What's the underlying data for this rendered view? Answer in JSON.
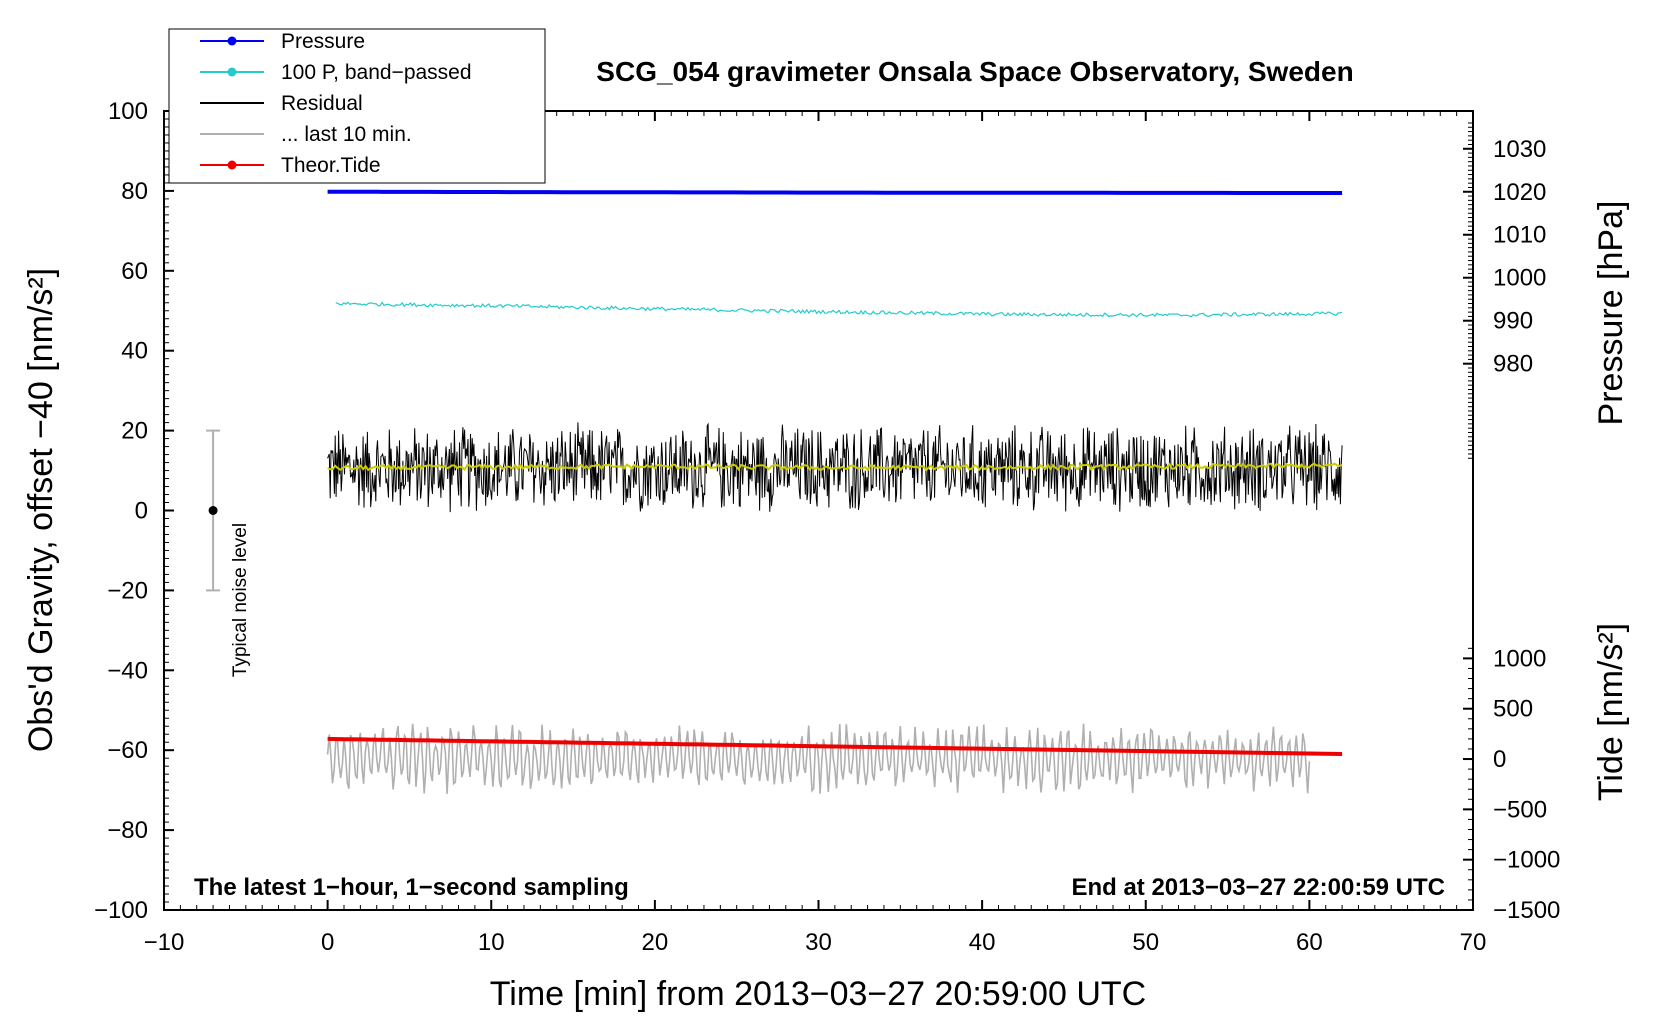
{
  "chart_data": {
    "type": "line",
    "title": "SCG_054 gravimeter Onsala Space Observatory, Sweden",
    "xlabel": "Time [min] from 2013−03−27 20:59:00 UTC",
    "ylabel_left": "Obs'd Gravity, offset −40 [nm/s²]",
    "ylabel_right_pressure": "Pressure [hPa]",
    "ylabel_right_tide": "Tide [nm/s²]",
    "xlim": [
      -10,
      70
    ],
    "ylim": [
      -100,
      100
    ],
    "x_ticks": [
      "−10",
      "0",
      "10",
      "20",
      "30",
      "40",
      "50",
      "60",
      "70"
    ],
    "x_tick_values": [
      -10,
      0,
      10,
      20,
      30,
      40,
      50,
      60,
      70
    ],
    "y_ticks": [
      "−100",
      "−80",
      "−60",
      "−40",
      "−20",
      "0",
      "20",
      "40",
      "60",
      "80",
      "100"
    ],
    "y_tick_values": [
      -100,
      -80,
      -60,
      -40,
      -20,
      0,
      20,
      40,
      60,
      80,
      100
    ],
    "pressure_axis": {
      "ticks": [
        "980",
        "990",
        "1000",
        "1010",
        "1020",
        "1030"
      ],
      "tick_values": [
        980,
        990,
        1000,
        1010,
        1020,
        1030
      ],
      "range": [
        957,
        1036
      ],
      "plot_gravity_at_range": [
        12,
        97
      ]
    },
    "tide_axis": {
      "ticks": [
        "−1500",
        "−1000",
        "−500",
        "0",
        "500",
        "1000"
      ],
      "tick_values": [
        -1500,
        -1000,
        -500,
        0,
        500,
        1000
      ],
      "range": [
        -1500,
        1100
      ],
      "plot_gravity_at_range": [
        -100,
        -34.5
      ]
    },
    "legend": [
      {
        "label": "Pressure",
        "color": "#0000ee",
        "marker": true
      },
      {
        "label": "100 P, band−passed",
        "color": "#22cccc",
        "marker": true
      },
      {
        "label": "Residual",
        "color": "#000000",
        "marker": false
      },
      {
        "label": "... last 10 min.",
        "color": "#b0b0b0",
        "marker": false
      },
      {
        "label": "Theor.Tide",
        "color": "#ee0000",
        "marker": true
      }
    ],
    "series": [
      {
        "name": "Pressure",
        "color": "#0000ee",
        "x_range": [
          0,
          62
        ],
        "values_hPa": [
          1020.0,
          1019.9,
          1019.8,
          1019.75,
          1019.7
        ]
      },
      {
        "name": "100 P, band−passed",
        "color": "#22cccc",
        "x_range": [
          0.5,
          62
        ],
        "values": [
          51.8,
          51.2,
          50.4,
          49.7,
          49.1,
          48.9,
          49.3
        ]
      },
      {
        "name": "Residual",
        "color": "#000000",
        "x_range": [
          0,
          62
        ],
        "mean": 10.5,
        "spread": 12
      },
      {
        "name": "Residual smoothed",
        "color": "#cccc00",
        "x_range": [
          0,
          62
        ],
        "values": [
          10.6,
          10.9,
          11.0,
          10.7,
          10.8,
          11.0,
          11.2
        ]
      },
      {
        "name": "... last 10 min.",
        "color": "#b0b0b0",
        "x_range": [
          0,
          60
        ],
        "mean": -62,
        "spread": 9
      },
      {
        "name": "Theor.Tide",
        "color": "#ee0000",
        "x_range": [
          0,
          62
        ],
        "values_nm_s2": [
          200,
          50
        ]
      }
    ],
    "noise_bar": {
      "label": "Typical noise level",
      "x": -7,
      "center": 0,
      "low": -20,
      "high": 20
    },
    "annotations": {
      "bottom_left": "The latest 1−hour, 1−second sampling",
      "bottom_right": "End at 2013−03−27 22:00:59 UTC"
    }
  }
}
